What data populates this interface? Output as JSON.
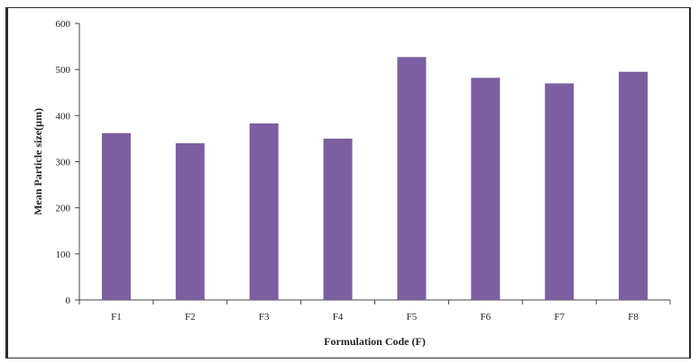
{
  "chart_data": {
    "type": "bar",
    "title": "",
    "xlabel": "Formulation Code (F)",
    "ylabel": "Mean Particle size(µm)",
    "categories": [
      "F1",
      "F2",
      "F3",
      "F4",
      "F5",
      "F6",
      "F7",
      "F8"
    ],
    "values": [
      362,
      340,
      383,
      350,
      527,
      482,
      470,
      495
    ],
    "ylim": [
      0,
      600
    ],
    "yticks": [
      0,
      100,
      200,
      300,
      400,
      500,
      600
    ],
    "grid": false,
    "legend": "none",
    "bar_color": "#7b5fa0"
  }
}
